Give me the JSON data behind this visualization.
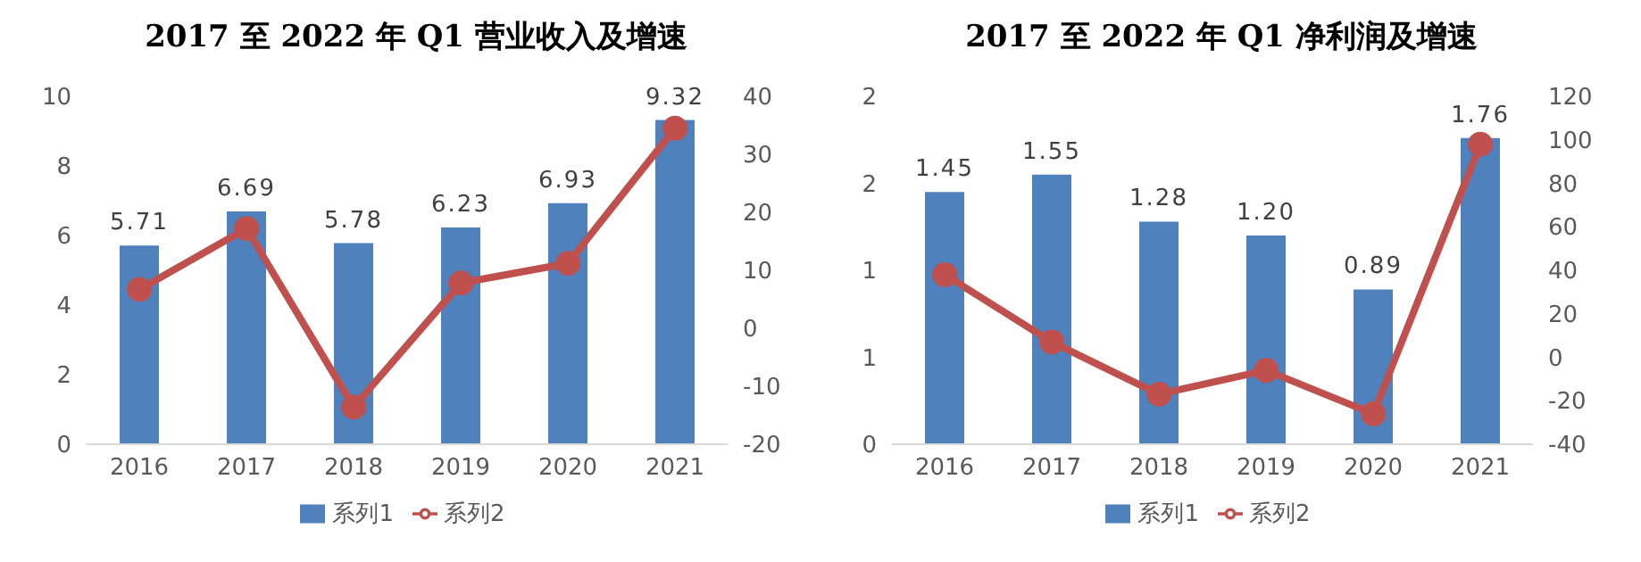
{
  "chart_data": [
    {
      "type": "bar",
      "title": "2017 至 2022 年 Q1 营业收入及增速",
      "categories": [
        "2016",
        "2017",
        "2018",
        "2019",
        "2020",
        "2021"
      ],
      "series": [
        {
          "name": "系列1",
          "color": "#4f81bd",
          "values": [
            5.71,
            6.69,
            5.78,
            6.23,
            6.93,
            9.32
          ],
          "value_labels": [
            "5.71",
            "6.69",
            "5.78",
            "6.23",
            "6.93",
            "9.32"
          ]
        },
        {
          "name": "系列2",
          "type": "line",
          "color": "#c0504d",
          "axis": "y2",
          "marker": "circle",
          "values": [
            6.7,
            17.2,
            -13.6,
            7.8,
            11.2,
            34.5
          ]
        }
      ],
      "ylim": [
        0,
        10
      ],
      "yticks": [
        0,
        2,
        4,
        6,
        8,
        10
      ],
      "y2lim": [
        -20,
        40
      ],
      "y2ticks": [
        -20,
        -10,
        0,
        10,
        20,
        30,
        40
      ],
      "grid": false,
      "legend": "bottom"
    },
    {
      "type": "bar",
      "title": "2017 至 2022 年 Q1 净利润及增速",
      "categories": [
        "2016",
        "2017",
        "2018",
        "2019",
        "2020",
        "2021"
      ],
      "series": [
        {
          "name": "系列1",
          "color": "#4f81bd",
          "values": [
            1.45,
            1.55,
            1.28,
            1.2,
            0.89,
            1.76
          ],
          "value_labels": [
            "1.45",
            "1.55",
            "1.28",
            "1.20",
            "0.89",
            "1.76"
          ]
        },
        {
          "name": "系列2",
          "type": "line",
          "color": "#c0504d",
          "axis": "y2",
          "marker": "circle",
          "values": [
            38,
            7,
            -17,
            -6,
            -26,
            98
          ]
        }
      ],
      "ylim": [
        0,
        2
      ],
      "yticks": [
        0,
        {
          "value": 0.5,
          "label": "1"
        },
        1,
        {
          "value": 1.5,
          "label": "2"
        },
        2
      ],
      "y2lim": [
        -40,
        120
      ],
      "y2ticks": [
        -40,
        -20,
        0,
        20,
        40,
        60,
        80,
        100,
        120
      ],
      "grid": false,
      "legend": "bottom"
    }
  ]
}
